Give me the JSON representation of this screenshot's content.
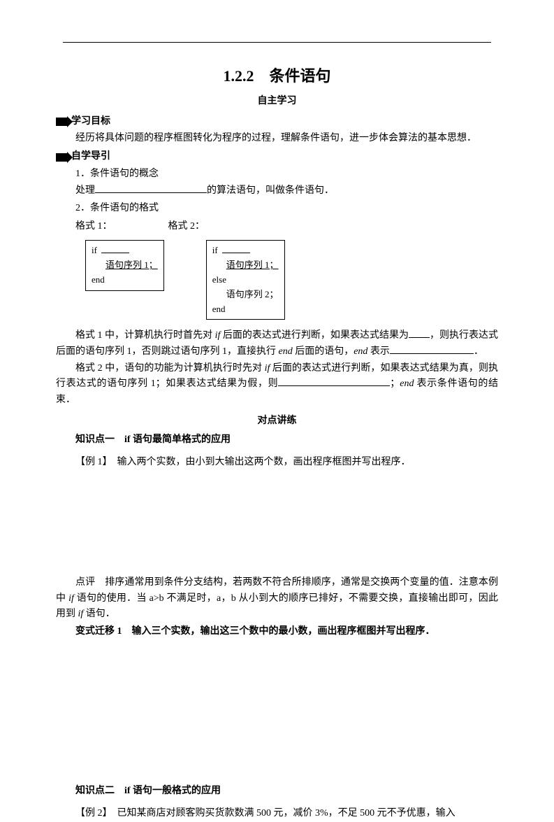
{
  "title": "1.2.2　条件语句",
  "subtitle": "自主学习",
  "objectives": {
    "heading": "学习目标",
    "text": "经历将具体问题的程序框图转化为程序的过程，理解条件语句，进一步体会算法的基本思想．"
  },
  "guide": {
    "heading": "自学导引",
    "item1": "1．条件语句的概念",
    "item1_text_a": "处理",
    "item1_text_b": "的算法语句，叫做条件语句．",
    "item2": "2．条件语句的格式",
    "format1_label": "格式 1：",
    "format2_label": "格式 2：",
    "diagram1": {
      "l1": "if",
      "l2": "语句序列 1；",
      "l3": "end"
    },
    "diagram2": {
      "l1": "if",
      "l2": "语句序列 1；",
      "l3": "else",
      "l4": "语句序列 2；",
      "l5": "end"
    },
    "para1_a": "格式 1 中，计算机执行时首先对 ",
    "para1_b": " 后面的表达式进行判断，如果表达式结果为",
    "para1_c": "，则执行表达式后面的语句序列 1，否则跳过语句序列 1，直接执行 ",
    "para1_d": " 后面的语句，",
    "para1_e": " 表示",
    "para1_f": "．",
    "para2_a": "格式 2 中，语句的功能为计算机执行时先对 ",
    "para2_b": " 后面的表达式进行判断，如果表达式结果为真，则执行表达式的语句序列 1；如果表达式结果为假，则",
    "para2_c": "；",
    "para2_d": " 表示条件语句的结束．",
    "if_word": "if",
    "end_word": "end"
  },
  "practice": {
    "heading": "对点讲练",
    "kp1": "知识点一　if 语句最简单格式的应用",
    "ex1": "【例 1】　输入两个实数，由小到大输出这两个数，画出程序框图并写出程序．",
    "review1_a": "点评　排序通常用到条件分支结构，若两数不符合所排顺序，通常是交换两个变量的值．注意本例中 ",
    "review1_b": " 语句的使用．当 a>b 不满足时，a，b 从小到大的顺序已排好，不需要交换，直接输出即可，因此用到 ",
    "review1_c": " 语句．",
    "var1": "变式迁移 1　输入三个实数，输出这三个数中的最小数，画出程序框图并写出程序．",
    "kp2": "知识点二　if 语句一般格式的应用",
    "ex2": "【例 2】　已知某商店对顾客购买货款数满 500 元，减价 3%，不足 500 元不予优惠，输入",
    "if_word": "if"
  }
}
